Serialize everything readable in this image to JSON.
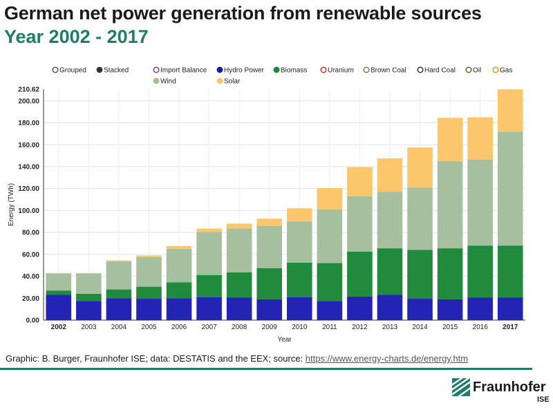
{
  "header": {
    "title": "German net power generation from renewable sources",
    "subtitle": "Year 2002 - 2017"
  },
  "mode_options": [
    {
      "label": "Grouped",
      "selected": false
    },
    {
      "label": "Stacked",
      "selected": true
    }
  ],
  "legend": [
    {
      "label": "Import Balance",
      "color": "#7b2a8c",
      "active": false
    },
    {
      "label": "Hydro Power",
      "color": "#1a1aa6",
      "active": true
    },
    {
      "label": "Biomass",
      "color": "#1e8a3a",
      "active": true
    },
    {
      "label": "Uranium",
      "color": "#cc2222",
      "active": false
    },
    {
      "label": "Brown Coal",
      "color": "#8b6a3a",
      "active": false
    },
    {
      "label": "Hard Coal",
      "color": "#222222",
      "active": false
    },
    {
      "label": "Oil",
      "color": "#6b4a1a",
      "active": false
    },
    {
      "label": "Gas",
      "color": "#e08a1a",
      "active": false
    },
    {
      "label": "Wind",
      "color": "#a3bf9a",
      "active": true
    },
    {
      "label": "Solar",
      "color": "#fcc66a",
      "active": true
    }
  ],
  "chart_data": {
    "type": "bar",
    "stacked": true,
    "xlabel": "Year",
    "ylabel": "Energy (TWh)",
    "ylim": [
      0,
      210.62
    ],
    "yticks": [
      "0.00",
      "20.00",
      "40.00",
      "60.00",
      "80.00",
      "100.00",
      "120.00",
      "140.00",
      "160.00",
      "180.00",
      "200.00",
      "210.62"
    ],
    "categories": [
      "2002",
      "2003",
      "2004",
      "2005",
      "2006",
      "2007",
      "2008",
      "2009",
      "2010",
      "2011",
      "2012",
      "2013",
      "2014",
      "2015",
      "2016",
      "2017"
    ],
    "bold_categories": [
      "2002",
      "2017"
    ],
    "series": [
      {
        "name": "Hydro Power",
        "color": "#2323b4",
        "values": [
          23,
          17.5,
          20,
          19.5,
          20,
          21,
          20.5,
          19,
          21,
          17.5,
          21.5,
          23,
          19.5,
          19,
          20.5,
          20.5
        ]
      },
      {
        "name": "Biomass",
        "color": "#218a3c",
        "values": [
          4,
          6.5,
          8,
          11,
          14.5,
          20,
          23,
          28.5,
          31.5,
          34.5,
          41,
          42.5,
          44.5,
          46.5,
          47.5,
          47.5
        ]
      },
      {
        "name": "Wind",
        "color": "#a6bf9f",
        "values": [
          15.5,
          18.5,
          25.5,
          27,
          30.5,
          39.5,
          40,
          38.5,
          37.5,
          49,
          50.5,
          51.5,
          57,
          79.5,
          78.5,
          104
        ]
      },
      {
        "name": "Solar",
        "color": "#fcc76c",
        "values": [
          0.5,
          0.5,
          1,
          1.5,
          2.5,
          3,
          4.5,
          6.5,
          12,
          19.5,
          26.5,
          30.5,
          36.5,
          39.5,
          38.5,
          38.5
        ]
      }
    ]
  },
  "footer": {
    "credit": "Graphic: B. Burger, Fraunhofer ISE; data: DESTATIS and the EEX; source:",
    "link": "https://www.energy-charts.de/energy.htm"
  },
  "logo": {
    "name": "Fraunhofer",
    "sub": "ISE"
  }
}
